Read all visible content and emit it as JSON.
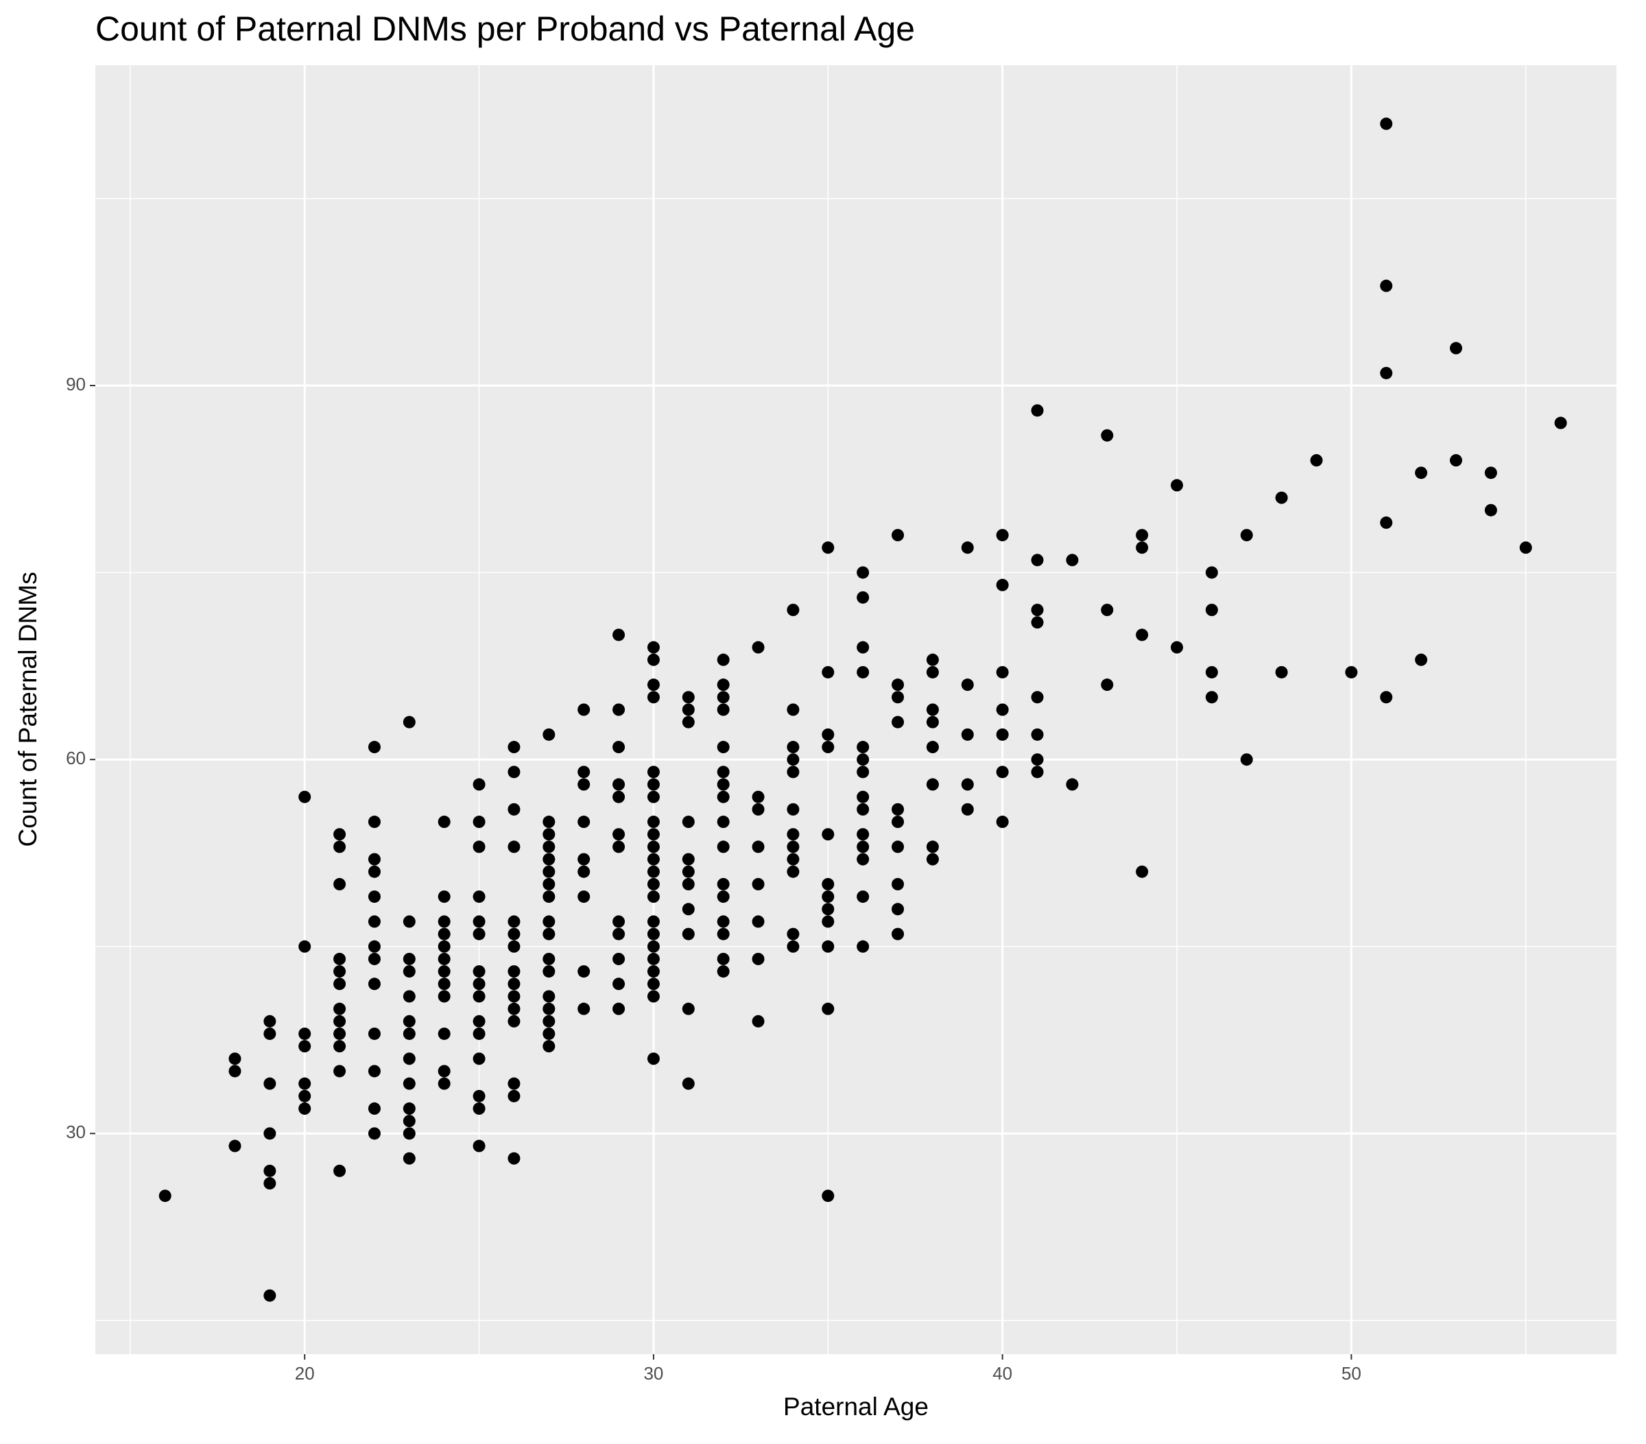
{
  "chart_data": {
    "type": "scatter",
    "title": "Count of Paternal DNMs per Proband vs Paternal Age",
    "x_label": "Paternal Age",
    "y_label": "Count of Paternal DNMs",
    "xlim": [
      14,
      57.6
    ],
    "ylim": [
      12.3,
      115.7
    ],
    "xticks": [
      20,
      30,
      40,
      50
    ],
    "yticks": [
      30,
      60,
      90
    ],
    "xminor": [
      15,
      25,
      35,
      45,
      55
    ],
    "yminor": [
      15,
      45,
      75,
      105
    ],
    "grid": true,
    "color": "#000000",
    "background": "#ebebeb",
    "x": [
      16,
      18,
      18,
      18,
      19,
      19,
      19,
      19,
      19,
      19,
      19,
      20,
      20,
      20,
      20,
      20,
      20,
      20,
      21,
      21,
      21,
      21,
      21,
      21,
      21,
      21,
      21,
      21,
      21,
      21,
      22,
      22,
      22,
      22,
      22,
      22,
      22,
      22,
      22,
      22,
      22,
      22,
      22,
      23,
      23,
      23,
      23,
      23,
      23,
      23,
      23,
      23,
      23,
      23,
      23,
      23,
      24,
      24,
      24,
      24,
      24,
      24,
      24,
      24,
      24,
      24,
      24,
      24,
      25,
      25,
      25,
      25,
      25,
      25,
      25,
      25,
      25,
      25,
      25,
      25,
      25,
      25,
      25,
      26,
      26,
      26,
      26,
      26,
      26,
      26,
      26,
      26,
      26,
      26,
      26,
      26,
      26,
      26,
      27,
      27,
      27,
      27,
      27,
      27,
      27,
      27,
      27,
      27,
      27,
      27,
      27,
      27,
      27,
      27,
      27,
      28,
      28,
      28,
      28,
      28,
      28,
      28,
      28,
      28,
      29,
      29,
      29,
      29,
      29,
      29,
      29,
      29,
      29,
      29,
      29,
      29,
      30,
      30,
      30,
      30,
      30,
      30,
      30,
      30,
      30,
      30,
      30,
      30,
      30,
      30,
      30,
      30,
      30,
      30,
      30,
      30,
      30,
      30,
      31,
      31,
      31,
      31,
      31,
      31,
      31,
      31,
      31,
      31,
      31,
      32,
      32,
      32,
      32,
      32,
      32,
      32,
      32,
      32,
      32,
      32,
      32,
      32,
      32,
      32,
      32,
      33,
      33,
      33,
      33,
      33,
      33,
      33,
      33,
      34,
      34,
      34,
      34,
      34,
      34,
      34,
      34,
      34,
      34,
      34,
      34,
      35,
      35,
      35,
      35,
      35,
      35,
      35,
      35,
      35,
      35,
      35,
      35,
      36,
      36,
      36,
      36,
      36,
      36,
      36,
      36,
      36,
      36,
      36,
      36,
      36,
      36,
      37,
      37,
      37,
      37,
      37,
      37,
      37,
      37,
      37,
      37,
      38,
      38,
      38,
      38,
      38,
      38,
      38,
      38,
      39,
      39,
      39,
      39,
      39,
      40,
      40,
      40,
      40,
      40,
      40,
      40,
      41,
      41,
      41,
      41,
      41,
      41,
      41,
      41,
      42,
      42,
      43,
      43,
      43,
      44,
      44,
      44,
      44,
      45,
      45,
      46,
      46,
      46,
      46,
      47,
      47,
      48,
      48,
      49,
      50,
      51,
      51,
      51,
      51,
      51,
      52,
      52,
      53,
      53,
      54,
      54,
      55,
      56
    ],
    "y": [
      25,
      36,
      35,
      29,
      39,
      38,
      34,
      30,
      27,
      26,
      17,
      57,
      45,
      38,
      37,
      34,
      33,
      32,
      54,
      53,
      50,
      44,
      43,
      42,
      40,
      39,
      38,
      37,
      35,
      27,
      61,
      55,
      52,
      51,
      49,
      47,
      45,
      44,
      42,
      38,
      35,
      32,
      30,
      63,
      47,
      44,
      43,
      41,
      39,
      38,
      36,
      34,
      32,
      31,
      30,
      28,
      55,
      49,
      47,
      46,
      45,
      44,
      43,
      42,
      41,
      38,
      35,
      34,
      58,
      55,
      53,
      49,
      47,
      46,
      43,
      42,
      41,
      39,
      38,
      36,
      33,
      32,
      29,
      61,
      59,
      56,
      53,
      47,
      46,
      45,
      43,
      42,
      41,
      40,
      39,
      34,
      33,
      28,
      62,
      55,
      54,
      53,
      52,
      51,
      50,
      49,
      47,
      46,
      44,
      43,
      41,
      40,
      39,
      38,
      37,
      64,
      59,
      58,
      55,
      52,
      51,
      49,
      43,
      40,
      70,
      64,
      61,
      58,
      57,
      54,
      53,
      47,
      46,
      44,
      42,
      40,
      69,
      68,
      66,
      65,
      59,
      58,
      57,
      55,
      54,
      53,
      52,
      51,
      50,
      49,
      47,
      46,
      45,
      44,
      43,
      42,
      41,
      36,
      65,
      64,
      63,
      55,
      52,
      51,
      50,
      48,
      46,
      40,
      34,
      68,
      66,
      65,
      64,
      61,
      59,
      58,
      57,
      55,
      53,
      50,
      49,
      47,
      46,
      44,
      43,
      69,
      57,
      56,
      53,
      50,
      47,
      44,
      39,
      72,
      64,
      61,
      60,
      59,
      56,
      54,
      53,
      52,
      51,
      46,
      45,
      77,
      67,
      62,
      61,
      54,
      50,
      49,
      48,
      47,
      45,
      40,
      25,
      75,
      73,
      69,
      67,
      61,
      60,
      59,
      57,
      56,
      54,
      53,
      52,
      49,
      45,
      78,
      66,
      65,
      63,
      56,
      55,
      53,
      50,
      48,
      46,
      68,
      67,
      64,
      63,
      61,
      58,
      53,
      52,
      77,
      66,
      62,
      58,
      56,
      78,
      74,
      67,
      64,
      62,
      59,
      55,
      88,
      76,
      72,
      71,
      65,
      62,
      60,
      59,
      76,
      58,
      86,
      72,
      66,
      78,
      77,
      70,
      51,
      82,
      69,
      75,
      72,
      67,
      65,
      78,
      60,
      81,
      67,
      84,
      67,
      111,
      98,
      91,
      79,
      65,
      83,
      68,
      93,
      84,
      83,
      80,
      77,
      87
    ]
  }
}
